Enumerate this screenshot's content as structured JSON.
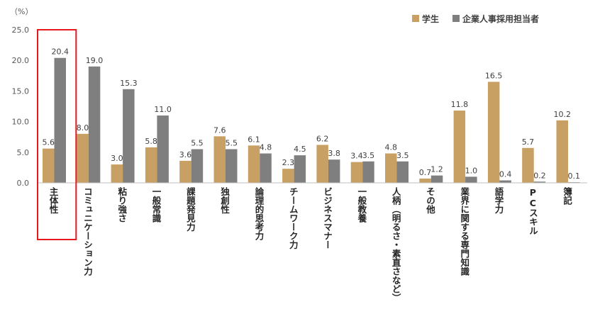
{
  "chart_data": {
    "type": "bar",
    "unit_label": "（%）",
    "categories": [
      "主体性",
      "コミュニケーション力",
      "粘り強さ",
      "一般常識",
      "課題発見力",
      "独創性",
      "論理的思考力",
      "チームワーク力",
      "ビジネスマナー",
      "一般教養",
      "人柄（明るさ・素直さなど）",
      "その他",
      "業界に関する専門知識",
      "語学力",
      "PCスキル",
      "簿記"
    ],
    "series": [
      {
        "name": "学生",
        "color": "#C9A063",
        "values": [
          5.6,
          8.0,
          3.0,
          5.8,
          3.6,
          7.6,
          6.1,
          2.3,
          6.2,
          3.4,
          4.8,
          0.7,
          11.8,
          16.5,
          5.7,
          10.2
        ]
      },
      {
        "name": "企業人事採用担当者",
        "color": "#7F7F7F",
        "values": [
          20.4,
          19.0,
          15.3,
          11.0,
          5.5,
          5.5,
          4.8,
          4.5,
          3.8,
          3.5,
          3.5,
          1.2,
          1.0,
          0.4,
          0.2,
          0.1
        ]
      }
    ],
    "value_labels": [
      [
        "5.6",
        "8.0",
        "3.0",
        "5.8",
        "3.6",
        "7.6",
        "6.1",
        "2.3",
        "6.2",
        "3.4",
        "4.8",
        "0.7",
        "11.8",
        "16.5",
        "5.7",
        "10.2"
      ],
      [
        "20.4",
        "19.0",
        "15.3",
        "11.0",
        "5.5",
        "5.5",
        "4.8",
        "4.5",
        "3.8",
        "3.5",
        "3.5",
        "1.2",
        "1.0",
        "0.4",
        "0.2",
        "0.1"
      ]
    ],
    "ylim": [
      0,
      25
    ],
    "yticks": [
      "0.0",
      "5.0",
      "10.0",
      "15.0",
      "20.0",
      "25.0"
    ],
    "grid": false,
    "legend_position": "top-right",
    "highlighted_category": "主体性",
    "highlight_color": "#E8191E"
  }
}
